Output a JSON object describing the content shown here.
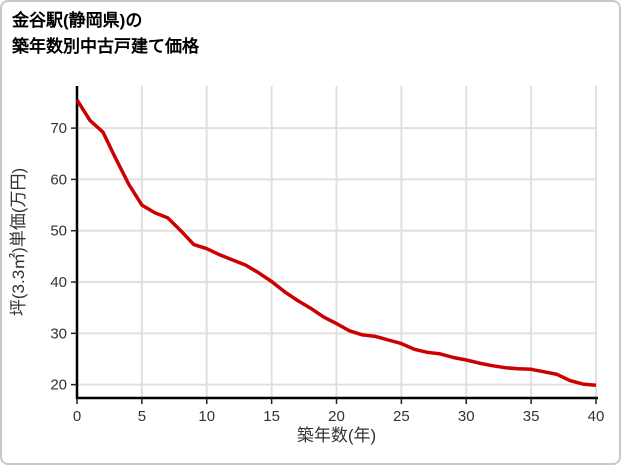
{
  "window": {
    "background": "#ffffff",
    "border_color": "#c9c9c9"
  },
  "title": {
    "line1": "金谷駅(静岡県)の",
    "line2": "築年数別中古戸建て価格"
  },
  "chart_data": {
    "type": "line",
    "title": "金谷駅(静岡県)の築年数別中古戸建て価格",
    "xlabel": "築年数(年)",
    "ylabel": "坪(3.3㎡)単価(万円)",
    "x": [
      0,
      1,
      2,
      3,
      4,
      5,
      6,
      7,
      8,
      9,
      10,
      11,
      12,
      13,
      14,
      15,
      16,
      17,
      18,
      19,
      20,
      21,
      22,
      23,
      24,
      25,
      26,
      27,
      28,
      29,
      30,
      31,
      32,
      33,
      34,
      35,
      36,
      37,
      38,
      39,
      40
    ],
    "values": [
      75.5,
      71.5,
      69.2,
      64,
      59,
      55,
      53.5,
      52.5,
      50,
      47.3,
      46.5,
      45.3,
      44.3,
      43.3,
      41.8,
      40.1,
      38.1,
      36.4,
      34.9,
      33.2,
      31.9,
      30.5,
      29.7,
      29.4,
      28.7,
      28,
      26.9,
      26.3,
      26,
      25.3,
      24.8,
      24.2,
      23.7,
      23.3,
      23.1,
      23,
      22.5,
      22,
      20.8,
      20.1,
      19.9
    ],
    "x_ticks": [
      0,
      5,
      10,
      15,
      20,
      25,
      30,
      35,
      40
    ],
    "y_ticks": [
      20,
      30,
      40,
      50,
      60,
      70
    ],
    "xlim": [
      0,
      40
    ],
    "ylim": [
      17.4,
      78.2
    ],
    "grid": true,
    "legend": "none",
    "line_color": "#cc0000",
    "grid_color": "#e0e0e0",
    "axis_color": "#000000",
    "tick_color": "#222222",
    "tick_label_color": "#333333",
    "axis_title_color": "#333333"
  }
}
